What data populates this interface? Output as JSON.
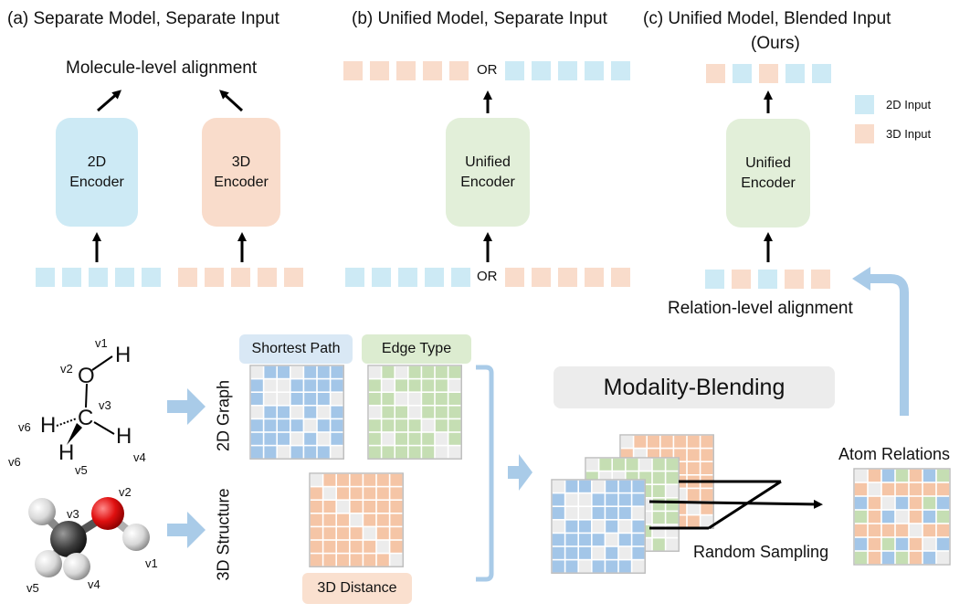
{
  "panels": {
    "a_title": "(a) Separate Model, Separate Input",
    "b_title": "(b) Unified Model, Separate Input",
    "c_title_line1": "(c) Unified Model, Blended Input",
    "c_title_line2": "(Ours)"
  },
  "labels": {
    "molecule_alignment": "Molecule-level alignment",
    "relation_alignment": "Relation-level alignment",
    "or": "OR",
    "enc_2d_line1": "2D",
    "enc_2d_line2": "Encoder",
    "enc_3d_line1": "3D",
    "enc_3d_line2": "Encoder",
    "unified_line1": "Unified",
    "unified_line2": "Encoder",
    "legend_2d": "2D Input",
    "legend_3d": "3D Input",
    "shortest_path": "Shortest Path",
    "edge_type": "Edge Type",
    "distance_3d": "3D Distance",
    "graph_2d": "2D Graph",
    "structure_3d": "3D Structure",
    "modality_blending": "Modality-Blending",
    "atom_relations": "Atom Relations",
    "random_sampling": "Random Sampling"
  },
  "molecule": {
    "atom_O": "O",
    "atom_C": "C",
    "atom_H": "H",
    "v1": "v1",
    "v2": "v2",
    "v3": "v3",
    "v4": "v4",
    "v5": "v5",
    "v6": "v6"
  },
  "colors": {
    "blue_2d": "#cdeaf5",
    "orange_3d": "#f9dccb",
    "green_unified": "#e2efd9",
    "grid_blue": "#a3c6e8",
    "grid_green": "#c5deb3",
    "grid_orange": "#f5c5a6",
    "grid_blank": "#ececec",
    "arrow_blue": "#a9cbe8",
    "banner_gray": "#ececec"
  }
}
